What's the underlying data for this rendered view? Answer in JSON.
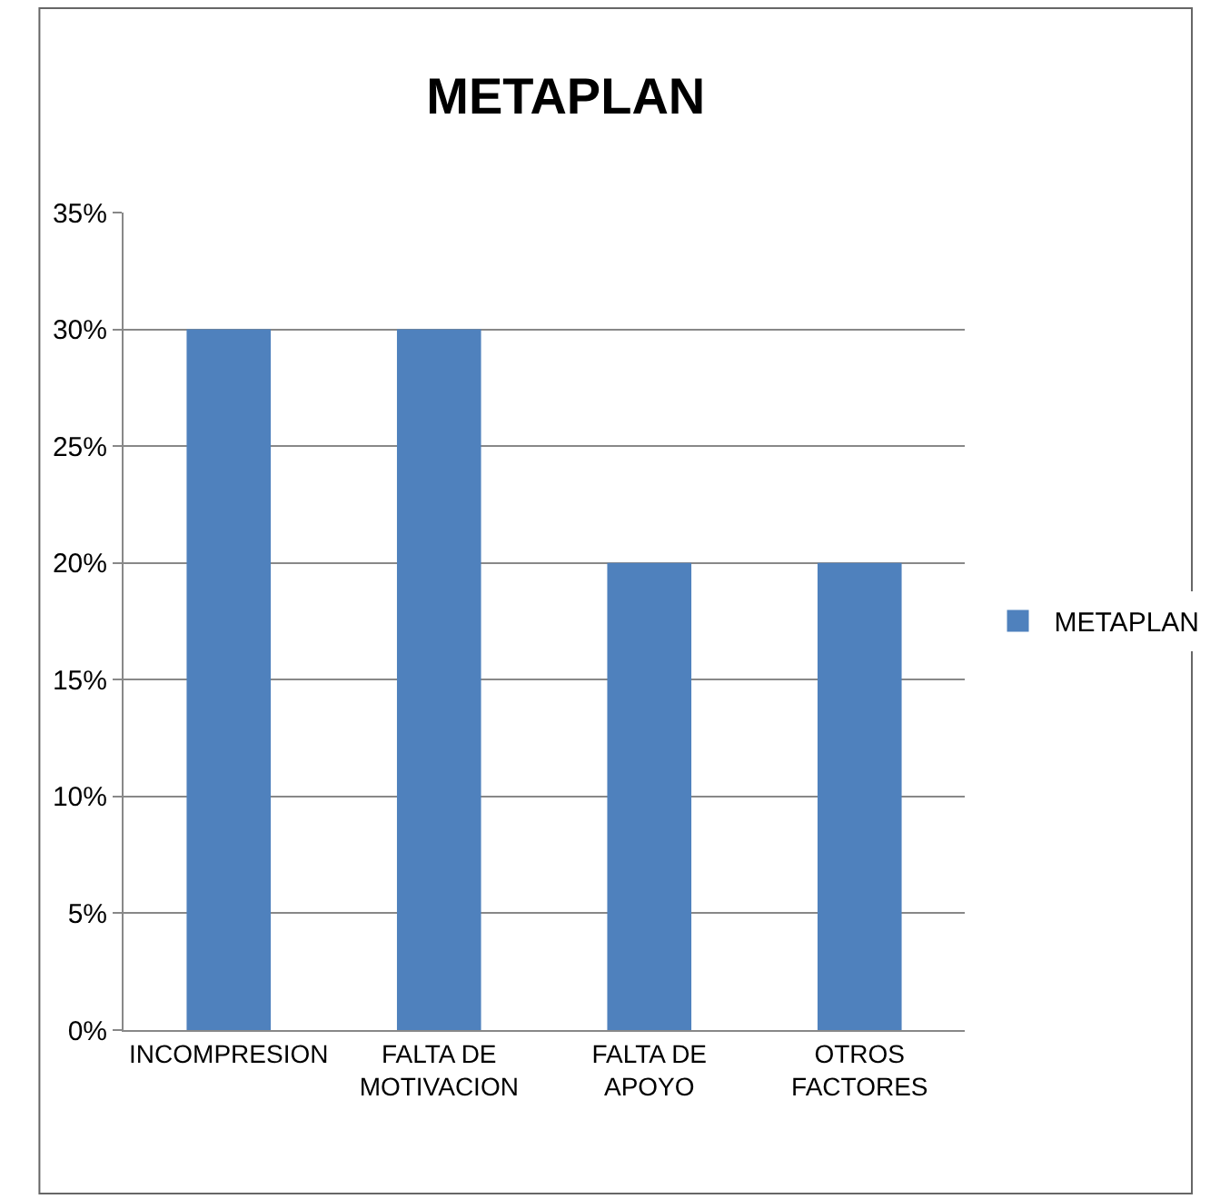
{
  "chart_data": {
    "type": "bar",
    "title": "METAPLAN",
    "categories": [
      "INCOMPRESION",
      "FALTA DE\nMOTIVACION",
      "FALTA DE\nAPOYO",
      "OTROS\nFACTORES"
    ],
    "series": [
      {
        "name": "METAPLAN",
        "color": "#4f81bd",
        "values": [
          30,
          30,
          20,
          20
        ]
      }
    ],
    "ylim": [
      0,
      35
    ],
    "yticks": [
      {
        "value": 0,
        "label": "0%"
      },
      {
        "value": 5,
        "label": "5%"
      },
      {
        "value": 10,
        "label": "10%"
      },
      {
        "value": 15,
        "label": "15%"
      },
      {
        "value": 20,
        "label": "20%"
      },
      {
        "value": 25,
        "label": "25%"
      },
      {
        "value": 30,
        "label": "30%"
      },
      {
        "value": 35,
        "label": "35%"
      }
    ],
    "grid": "y",
    "legend": "right"
  }
}
